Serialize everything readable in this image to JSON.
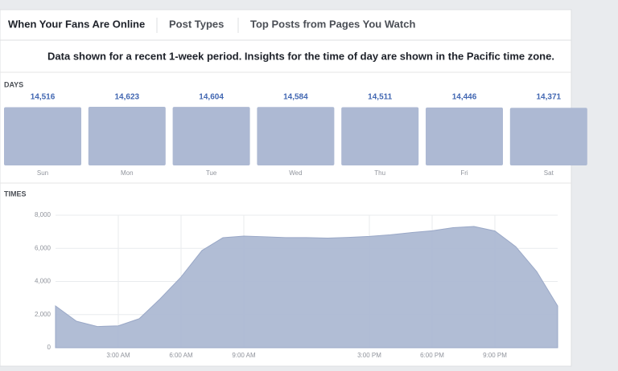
{
  "tabs": [
    "When Your Fans Are Online",
    "Post Types",
    "Top Posts from Pages You Watch"
  ],
  "notice": "Data shown for a recent 1-week period. Insights for the time of day are shown in the Pacific time zone.",
  "chart_data": [
    {
      "type": "bar",
      "title": "DAYS",
      "categories": [
        "Sun",
        "Mon",
        "Tue",
        "Wed",
        "Thu",
        "Fri",
        "Sat"
      ],
      "values": [
        14516,
        14623,
        14604,
        14584,
        14511,
        14446,
        14371
      ],
      "value_labels": [
        "14,516",
        "14,623",
        "14,604",
        "14,584",
        "14,511",
        "14,446",
        "14,371"
      ],
      "color": "#adb9d3"
    },
    {
      "type": "area",
      "title": "TIMES",
      "x": [
        0,
        1,
        2,
        3,
        4,
        5,
        6,
        7,
        8,
        9,
        10,
        11,
        12,
        13,
        14,
        15,
        16,
        17,
        18,
        19,
        20,
        21,
        22,
        23,
        24
      ],
      "values": [
        2520,
        1600,
        1280,
        1320,
        1750,
        2950,
        4270,
        5870,
        6640,
        6740,
        6700,
        6650,
        6650,
        6620,
        6660,
        6720,
        6820,
        6950,
        7060,
        7250,
        7320,
        7050,
        6100,
        4600,
        2520
      ],
      "xlim": [
        0,
        24
      ],
      "ylim": [
        0,
        8000
      ],
      "xticks": [
        {
          "value": 3,
          "label": "3:00 AM"
        },
        {
          "value": 6,
          "label": "6:00 AM"
        },
        {
          "value": 9,
          "label": "9:00 AM"
        },
        {
          "value": 15,
          "label": "3:00 PM"
        },
        {
          "value": 18,
          "label": "6:00 PM"
        },
        {
          "value": 21,
          "label": "9:00 PM"
        }
      ],
      "yticks": [
        0,
        {
          "value": 2000,
          "label": "2,000"
        },
        {
          "value": 4000,
          "label": "4,000"
        },
        {
          "value": 6000,
          "label": "6,000"
        },
        {
          "value": 8000,
          "label": "8,000"
        }
      ],
      "grid": true,
      "color": "#adb9d3"
    }
  ]
}
